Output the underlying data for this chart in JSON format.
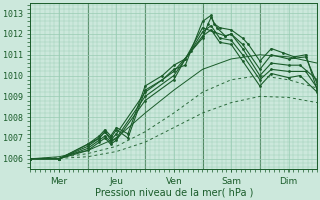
{
  "bg_color": "#cce8dc",
  "grid_color": "#99ccb3",
  "line_color": "#1a5c2a",
  "xlabel": "Pression niveau de la mer( hPa )",
  "xlim": [
    0,
    5
  ],
  "ylim": [
    1005.5,
    1013.5
  ],
  "yticks": [
    1006,
    1007,
    1008,
    1009,
    1010,
    1011,
    1012,
    1013
  ],
  "xtick_labels": [
    "Mer",
    "Jeu",
    "Ven",
    "Sam",
    "Dim"
  ],
  "xtick_positions": [
    0.5,
    1.5,
    2.5,
    3.5,
    4.5
  ],
  "vlines": [
    1.0,
    2.0,
    3.0,
    4.0
  ],
  "lines": [
    {
      "x": [
        0,
        0.5,
        1.0,
        1.2,
        1.3,
        1.4,
        1.5,
        1.7,
        2.0,
        2.3,
        2.5,
        2.7,
        3.0,
        3.15,
        3.2,
        3.3,
        3.5,
        3.7,
        3.8,
        4.0,
        4.2,
        4.4,
        4.6,
        4.8,
        5.0
      ],
      "y": [
        1006.0,
        1006.0,
        1006.7,
        1007.0,
        1007.3,
        1007.0,
        1007.4,
        1007.0,
        1009.3,
        1009.8,
        1010.3,
        1010.5,
        1012.6,
        1012.9,
        1012.5,
        1012.3,
        1012.2,
        1011.8,
        1011.5,
        1010.7,
        1011.3,
        1011.1,
        1010.9,
        1011.0,
        1009.3
      ],
      "style": "solid",
      "marker": true
    },
    {
      "x": [
        0,
        0.5,
        1.0,
        1.2,
        1.3,
        1.4,
        1.5,
        1.7,
        2.0,
        2.3,
        2.5,
        2.7,
        3.0,
        3.2,
        3.4,
        3.5,
        3.7,
        4.0,
        4.2,
        4.5,
        4.8,
        5.0
      ],
      "y": [
        1006.0,
        1006.0,
        1006.7,
        1007.1,
        1007.4,
        1007.1,
        1007.5,
        1007.2,
        1009.5,
        1010.0,
        1010.5,
        1010.8,
        1012.3,
        1012.1,
        1011.9,
        1012.0,
        1011.5,
        1010.3,
        1011.0,
        1010.8,
        1010.9,
        1009.6
      ],
      "style": "solid",
      "marker": true
    },
    {
      "x": [
        0,
        0.5,
        1.0,
        1.2,
        1.3,
        1.4,
        1.5,
        2.0,
        2.5,
        3.0,
        3.1,
        3.15,
        3.25,
        3.4,
        3.5,
        3.7,
        4.0,
        4.2,
        4.5,
        4.7,
        5.0
      ],
      "y": [
        1006.0,
        1006.0,
        1006.6,
        1007.0,
        1007.3,
        1006.9,
        1007.2,
        1009.2,
        1010.2,
        1011.8,
        1012.5,
        1012.8,
        1012.3,
        1011.9,
        1012.0,
        1011.3,
        1010.0,
        1010.6,
        1010.5,
        1010.5,
        1009.8
      ],
      "style": "solid",
      "marker": true
    },
    {
      "x": [
        0,
        0.5,
        1.0,
        1.2,
        1.3,
        1.4,
        1.5,
        2.0,
        2.5,
        2.8,
        3.0,
        3.15,
        3.3,
        3.5,
        3.7,
        4.0,
        4.2,
        4.5,
        4.8,
        5.0
      ],
      "y": [
        1006.0,
        1006.0,
        1006.5,
        1006.9,
        1007.1,
        1006.8,
        1007.0,
        1009.0,
        1010.0,
        1011.2,
        1012.1,
        1012.4,
        1011.8,
        1011.7,
        1011.0,
        1009.8,
        1010.3,
        1010.2,
        1010.2,
        1009.4
      ],
      "style": "solid",
      "marker": true
    },
    {
      "x": [
        0,
        0.5,
        1.0,
        1.2,
        1.3,
        1.4,
        1.5,
        2.0,
        2.5,
        2.7,
        3.0,
        3.15,
        3.3,
        3.5,
        3.7,
        4.0,
        4.2,
        4.5,
        4.7,
        5.0
      ],
      "y": [
        1006.0,
        1006.0,
        1006.4,
        1006.8,
        1007.0,
        1006.7,
        1006.9,
        1008.8,
        1009.8,
        1010.8,
        1011.9,
        1012.2,
        1011.6,
        1011.5,
        1010.7,
        1009.5,
        1010.1,
        1009.9,
        1010.0,
        1009.2
      ],
      "style": "solid",
      "marker": true
    },
    {
      "x": [
        0,
        0.5,
        1.0,
        1.5,
        2.0,
        2.5,
        3.0,
        3.5,
        4.0,
        4.5,
        5.0
      ],
      "y": [
        1006.0,
        1006.1,
        1006.4,
        1007.0,
        1008.2,
        1009.3,
        1010.3,
        1010.8,
        1011.0,
        1010.9,
        1010.6
      ],
      "style": "solid_thin",
      "marker": false
    },
    {
      "x": [
        0,
        0.5,
        1.0,
        1.5,
        2.0,
        2.5,
        3.0,
        3.5,
        4.0,
        4.5,
        5.0
      ],
      "y": [
        1006.0,
        1006.05,
        1006.25,
        1006.6,
        1007.3,
        1008.2,
        1009.2,
        1009.8,
        1010.0,
        1009.8,
        1009.4
      ],
      "style": "dashed",
      "marker": false
    },
    {
      "x": [
        0,
        0.5,
        1.0,
        1.5,
        2.0,
        2.5,
        3.0,
        3.5,
        4.0,
        4.5,
        5.0
      ],
      "y": [
        1006.0,
        1006.02,
        1006.1,
        1006.35,
        1006.8,
        1007.5,
        1008.2,
        1008.7,
        1009.0,
        1008.95,
        1008.7
      ],
      "style": "dashed",
      "marker": false
    }
  ]
}
